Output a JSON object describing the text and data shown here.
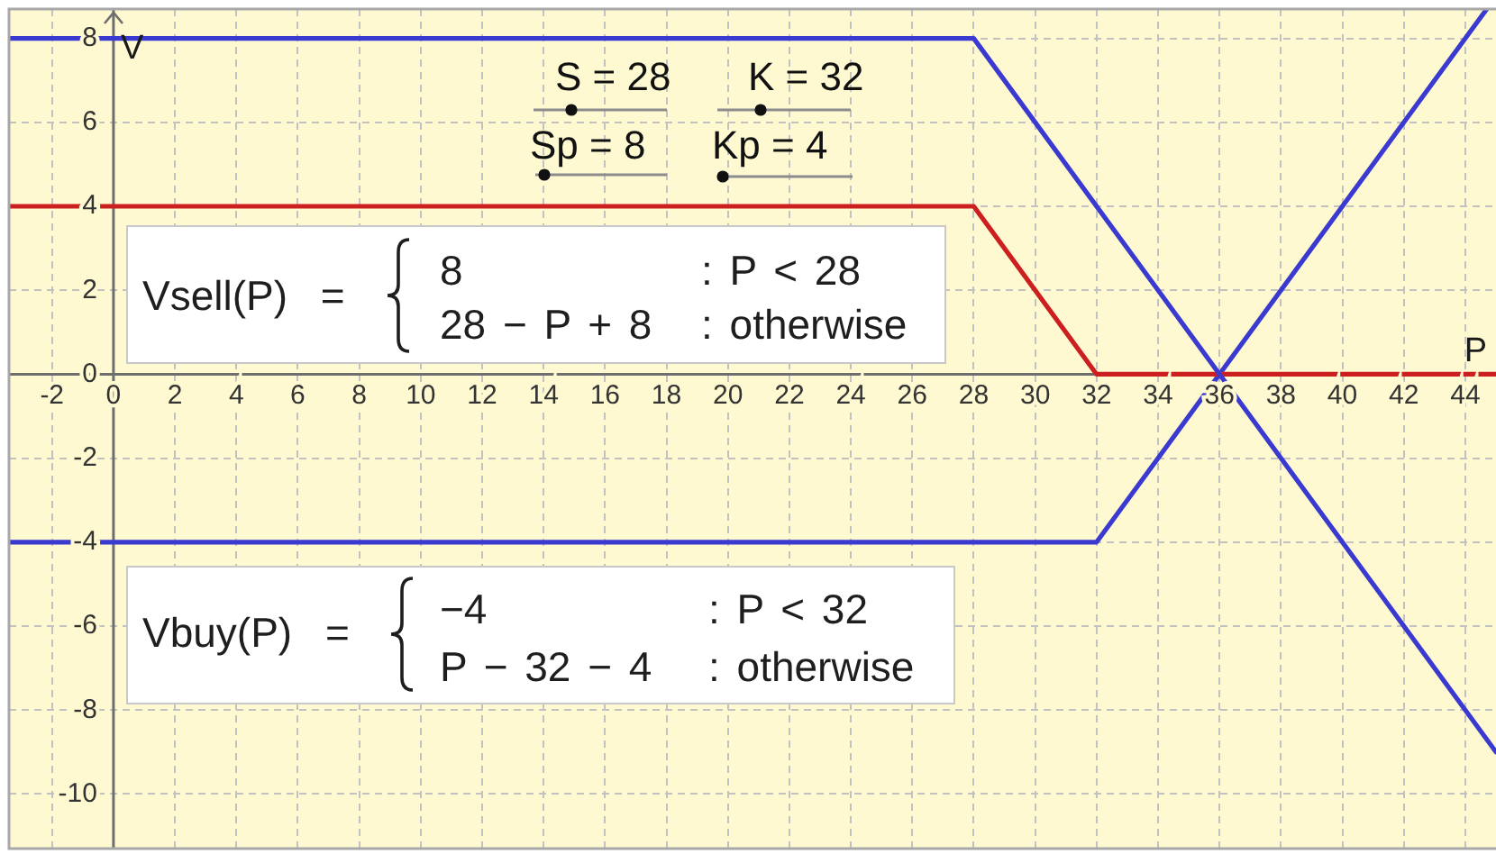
{
  "chart_data": {
    "type": "line",
    "xlabel": "P",
    "ylabel": "V",
    "xlim": [
      -3.4,
      45
    ],
    "ylim": [
      -11.3,
      8.7
    ],
    "xticks": [
      -2,
      0,
      2,
      4,
      6,
      8,
      10,
      12,
      14,
      16,
      18,
      20,
      22,
      24,
      26,
      28,
      30,
      32,
      34,
      36,
      38,
      40,
      42,
      44
    ],
    "yticks": [
      -10,
      -8,
      -6,
      -4,
      -2,
      0,
      2,
      4,
      6,
      8
    ],
    "grid": true,
    "legend": false,
    "marker": "none",
    "line_style": "solid",
    "series": [
      {
        "color": "#3a3ad0",
        "x": [
          -3.4,
          28,
          45
        ],
        "values": [
          8,
          8,
          -9
        ]
      },
      {
        "color": "#cc2020",
        "x": [
          -3.4,
          28,
          32,
          45
        ],
        "values": [
          4,
          4,
          0,
          0
        ]
      },
      {
        "color": "#3a3ad0",
        "x": [
          -3.4,
          32,
          44.7
        ],
        "values": [
          -4,
          -4,
          8.7
        ]
      }
    ],
    "annotations": [
      "S = 28",
      "K = 32",
      "Sp = 8",
      "Kp = 4",
      "Vsell(P) =",
      "8",
      ": P < 28",
      "28 − P + 8",
      ": otherwise",
      "Vbuy(P) =",
      "−4",
      ": P < 32",
      "P − 32 − 4",
      ": otherwise"
    ]
  }
}
